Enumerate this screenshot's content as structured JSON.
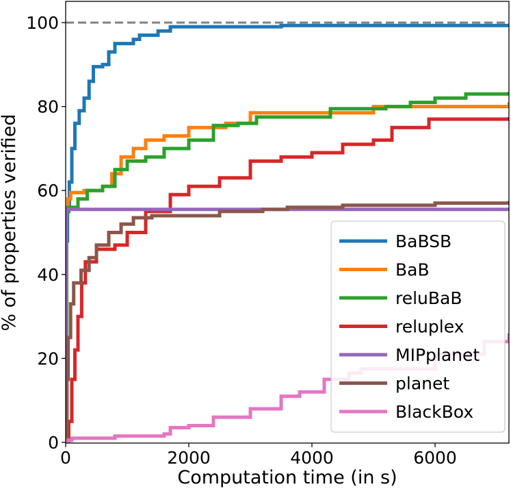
{
  "chart_data": {
    "type": "line",
    "title": "",
    "xlabel": "Computation time (in s)",
    "ylabel": "% of properties verified",
    "xlim": [
      0,
      7200
    ],
    "ylim": [
      0,
      100
    ],
    "xticks": [
      0,
      2000,
      4000,
      6000
    ],
    "yticks": [
      0,
      20,
      40,
      60,
      80,
      100
    ],
    "reference_line": {
      "y": 100,
      "style": "dashed",
      "color": "#808080"
    },
    "legend_position": "lower-right",
    "series": [
      {
        "name": "BaBSB",
        "color": "#1f77b4",
        "points": [
          [
            0,
            0
          ],
          [
            10,
            48
          ],
          [
            30,
            56
          ],
          [
            60,
            62
          ],
          [
            100,
            70
          ],
          [
            150,
            76
          ],
          [
            220,
            79
          ],
          [
            300,
            82
          ],
          [
            380,
            86
          ],
          [
            450,
            89.5
          ],
          [
            600,
            90
          ],
          [
            700,
            93
          ],
          [
            800,
            95
          ],
          [
            1000,
            95
          ],
          [
            1100,
            96
          ],
          [
            1200,
            97
          ],
          [
            1500,
            98
          ],
          [
            1700,
            99
          ],
          [
            3000,
            99
          ],
          [
            3500,
            99.3
          ],
          [
            7200,
            99.3
          ]
        ]
      },
      {
        "name": "BaB",
        "color": "#ff7f0e",
        "points": [
          [
            0,
            0
          ],
          [
            15,
            55
          ],
          [
            40,
            58
          ],
          [
            80,
            59.5
          ],
          [
            300,
            60
          ],
          [
            600,
            61
          ],
          [
            750,
            64
          ],
          [
            900,
            68
          ],
          [
            1100,
            70
          ],
          [
            1300,
            72
          ],
          [
            1600,
            73
          ],
          [
            2000,
            75
          ],
          [
            2600,
            76
          ],
          [
            3000,
            78.5
          ],
          [
            3600,
            78.5
          ],
          [
            4500,
            78.5
          ],
          [
            5000,
            80
          ],
          [
            6000,
            80
          ],
          [
            7200,
            81
          ]
        ]
      },
      {
        "name": "reluBaB",
        "color": "#2ca02c",
        "points": [
          [
            0,
            0
          ],
          [
            15,
            55
          ],
          [
            50,
            56
          ],
          [
            200,
            58
          ],
          [
            350,
            60
          ],
          [
            600,
            61
          ],
          [
            800,
            65
          ],
          [
            1000,
            67
          ],
          [
            1300,
            68
          ],
          [
            1600,
            70
          ],
          [
            2000,
            72
          ],
          [
            2400,
            75.5
          ],
          [
            2800,
            76
          ],
          [
            3100,
            77.5
          ],
          [
            4200,
            77.5
          ],
          [
            4300,
            79.5
          ],
          [
            5200,
            80
          ],
          [
            5600,
            81
          ],
          [
            6000,
            82
          ],
          [
            6500,
            83
          ],
          [
            7200,
            83.5
          ]
        ]
      },
      {
        "name": "reluplex",
        "color": "#d62728",
        "points": [
          [
            0,
            0
          ],
          [
            50,
            5
          ],
          [
            100,
            15
          ],
          [
            150,
            22
          ],
          [
            200,
            30
          ],
          [
            260,
            38
          ],
          [
            320,
            43
          ],
          [
            500,
            46
          ],
          [
            800,
            47
          ],
          [
            1000,
            50
          ],
          [
            1300,
            55
          ],
          [
            1700,
            59
          ],
          [
            2000,
            61
          ],
          [
            2500,
            63
          ],
          [
            3000,
            67
          ],
          [
            3500,
            68
          ],
          [
            4000,
            69
          ],
          [
            4500,
            71
          ],
          [
            5000,
            72
          ],
          [
            5300,
            75
          ],
          [
            5900,
            77
          ],
          [
            7200,
            77.5
          ]
        ]
      },
      {
        "name": "MIPplanet",
        "color": "#9467bd",
        "points": [
          [
            0,
            0
          ],
          [
            5,
            40
          ],
          [
            10,
            55.5
          ],
          [
            7200,
            55.5
          ]
        ]
      },
      {
        "name": "planet",
        "color": "#8c564b",
        "points": [
          [
            0,
            0
          ],
          [
            20,
            15
          ],
          [
            40,
            25
          ],
          [
            80,
            33
          ],
          [
            130,
            38
          ],
          [
            250,
            41
          ],
          [
            380,
            44
          ],
          [
            500,
            47
          ],
          [
            700,
            50
          ],
          [
            900,
            52
          ],
          [
            1100,
            53.5
          ],
          [
            1400,
            54
          ],
          [
            2500,
            55
          ],
          [
            3200,
            55.5
          ],
          [
            3600,
            56
          ],
          [
            4500,
            56.5
          ],
          [
            6000,
            57
          ],
          [
            7200,
            57.5
          ]
        ]
      },
      {
        "name": "BlackBox",
        "color": "#e377c2",
        "points": [
          [
            0,
            0
          ],
          [
            40,
            0.5
          ],
          [
            100,
            1
          ],
          [
            700,
            1
          ],
          [
            800,
            1.5
          ],
          [
            1600,
            2
          ],
          [
            1700,
            3.5
          ],
          [
            2000,
            4
          ],
          [
            2400,
            6
          ],
          [
            3000,
            8
          ],
          [
            3500,
            11
          ],
          [
            3800,
            12
          ],
          [
            4200,
            15
          ],
          [
            4600,
            16.5
          ],
          [
            4800,
            17.5
          ],
          [
            6000,
            21
          ],
          [
            6800,
            24
          ],
          [
            7200,
            26
          ]
        ]
      }
    ]
  }
}
